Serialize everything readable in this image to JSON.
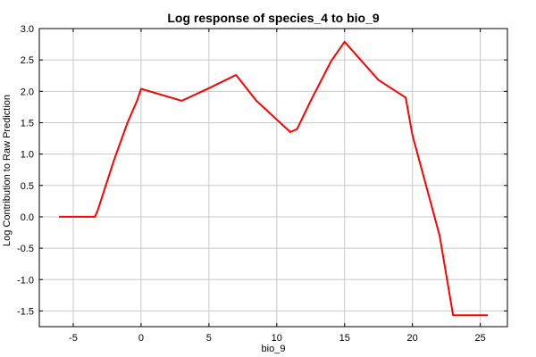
{
  "chart_data": {
    "type": "line",
    "title": "Log response of species_4 to bio_9",
    "xlabel": "bio_9",
    "ylabel": "Log Contribution to Raw Prediction",
    "xlim": [
      -7.5,
      27.0
    ],
    "ylim": [
      -1.75,
      3.0
    ],
    "xticks": [
      -5,
      0,
      5,
      10,
      15,
      20,
      25
    ],
    "xtick_labels": [
      "-5",
      "0",
      "5",
      "10",
      "15",
      "20",
      "25"
    ],
    "yticks": [
      -1.5,
      -1.0,
      -0.5,
      0.0,
      0.5,
      1.0,
      1.5,
      2.0,
      2.5,
      3.0
    ],
    "ytick_labels": [
      "-1.5",
      "-1.0",
      "-0.5",
      "0.0",
      "0.5",
      "1.0",
      "1.5",
      "2.0",
      "2.5",
      "3.0"
    ],
    "grid": true,
    "series": [
      {
        "color": "#ff0000",
        "x": [
          -6.0,
          -3.4,
          -3.2,
          -2.0,
          -1.0,
          -0.3,
          0.0,
          3.0,
          5.0,
          7.0,
          8.5,
          10.0,
          11.0,
          11.5,
          12.5,
          14.0,
          15.0,
          17.5,
          19.5,
          20.0,
          22.0,
          23.0,
          25.5
        ],
        "y": [
          0.0,
          0.0,
          0.1,
          0.9,
          1.5,
          1.85,
          2.04,
          1.85,
          2.05,
          2.26,
          1.85,
          1.55,
          1.35,
          1.4,
          1.85,
          2.48,
          2.79,
          2.18,
          1.9,
          1.3,
          -0.3,
          -1.57,
          -1.57
        ]
      }
    ]
  }
}
